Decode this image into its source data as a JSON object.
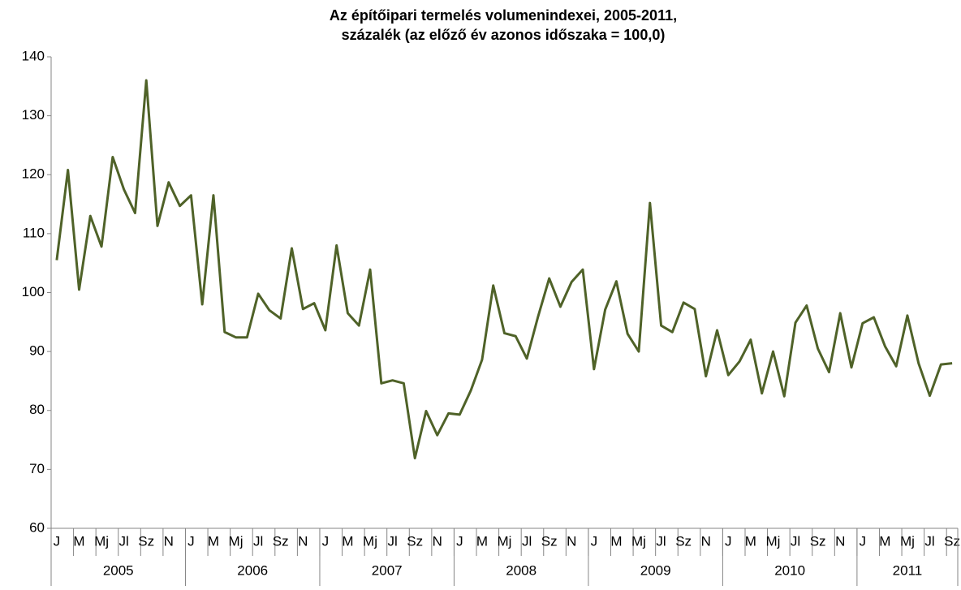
{
  "chart_data": {
    "type": "line",
    "title": [
      "Az építőipari termelés volumenindexei, 2005-2011,",
      "százalék (az előző év azonos időszaka = 100,0)"
    ],
    "categories": [
      "J",
      null,
      "M",
      null,
      "Mj",
      null,
      "Jl",
      null,
      "Sz",
      null,
      "N",
      null,
      "J",
      null,
      "M",
      null,
      "Mj",
      null,
      "Jl",
      null,
      "Sz",
      null,
      "N",
      null,
      "J",
      null,
      "M",
      null,
      "Mj",
      null,
      "Jl",
      null,
      "Sz",
      null,
      "N",
      null,
      "J",
      null,
      "M",
      null,
      "Mj",
      null,
      "Jl",
      null,
      "Sz",
      null,
      "N",
      null,
      "J",
      null,
      "M",
      null,
      "Mj",
      null,
      "Jl",
      null,
      "Sz",
      null,
      "N",
      null,
      "J",
      null,
      "M",
      null,
      "Mj",
      null,
      "Jl",
      null,
      "Sz",
      null,
      "N",
      null,
      "J",
      null,
      "M",
      null,
      "Mj",
      null,
      "Jl",
      null,
      "Sz"
    ],
    "years": [
      "2005",
      "2006",
      "2007",
      "2008",
      "2009",
      "2010",
      "2011"
    ],
    "series": [
      {
        "color": "#4f6228",
        "values": [
          105.5,
          120.8,
          100.5,
          113,
          107.8,
          123,
          117.5,
          113.5,
          136,
          111.3,
          118.7,
          114.7,
          116.5,
          98,
          116.5,
          93.3,
          92.4,
          92.4,
          99.8,
          97,
          95.6,
          107.5,
          97.2,
          98.2,
          93.6,
          108,
          96.5,
          94.4,
          103.9,
          84.6,
          85.1,
          84.6,
          71.9,
          79.9,
          75.8,
          79.5,
          79.3,
          83.4,
          88.6,
          101.2,
          93.1,
          92.6,
          88.8,
          95.9,
          102.4,
          97.6,
          101.8,
          103.9,
          87,
          97.1,
          101.9,
          93,
          90,
          115.2,
          94.4,
          93.3,
          98.3,
          97.2,
          85.8,
          93.6,
          86,
          88.3,
          92,
          82.9,
          90,
          82.4,
          94.9,
          97.8,
          90.5,
          86.5,
          96.5,
          87.3,
          94.8,
          95.8,
          90.9,
          87.5,
          96.1,
          88,
          82.5,
          87.8,
          88
        ]
      }
    ],
    "ylim": [
      60,
      140
    ],
    "yticks": [
      60,
      70,
      80,
      90,
      100,
      110,
      120,
      130,
      140
    ],
    "grid": false
  }
}
